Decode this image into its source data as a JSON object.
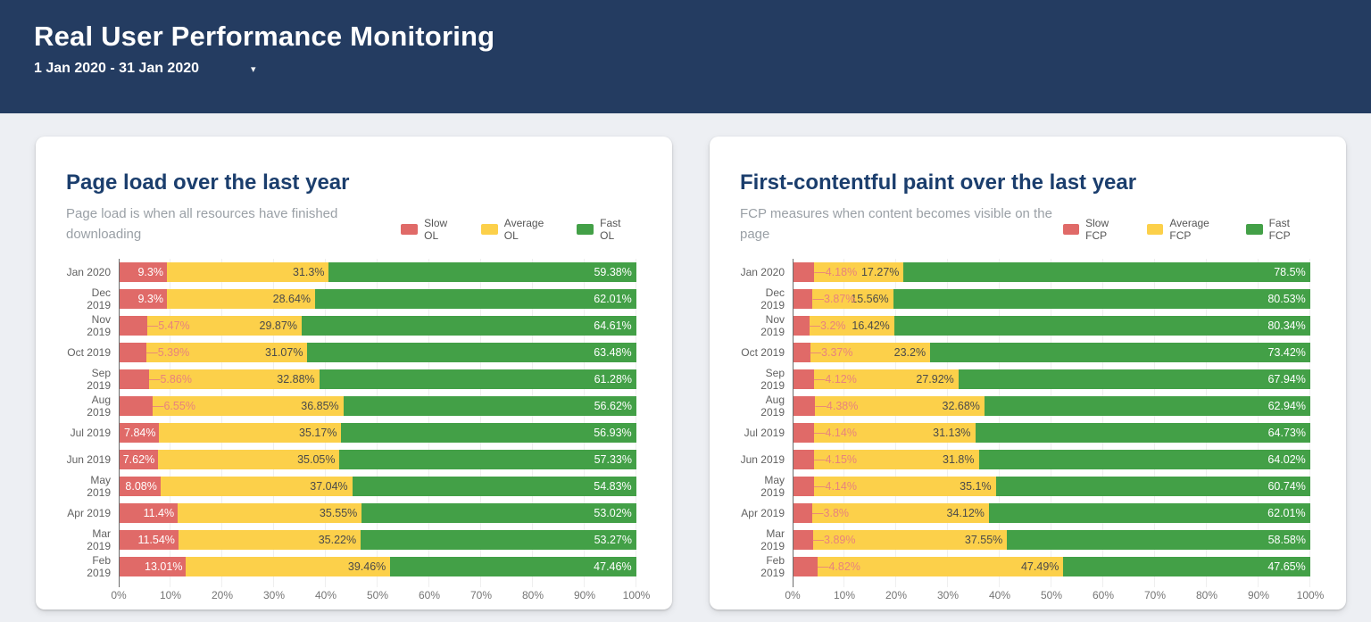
{
  "header": {
    "title": "Real User Performance Monitoring",
    "date_range": "1 Jan 2020 - 31 Jan 2020",
    "caret_icon": "▾"
  },
  "colors": {
    "header_bg": "#243c61",
    "page_bg": "#edeff3",
    "card_bg": "#ffffff",
    "card_title_text": "#1b3e6d",
    "subtitle_text": "#9aa0a6",
    "slow": "#e06a68",
    "average": "#fcd04a",
    "fast": "#43a047",
    "slow_outside_label": "#e8837d",
    "axis_text": "#757575"
  },
  "chart_data": [
    {
      "type": "bar",
      "orientation": "horizontal-stacked",
      "title": "Page load over the last year",
      "subtitle": "Page load is when all resources have finished downloading",
      "legend_position": "top-right",
      "grid": "vertical-faint",
      "xlim": [
        0,
        100
      ],
      "x_ticks": [
        "0%",
        "10%",
        "20%",
        "30%",
        "40%",
        "50%",
        "60%",
        "70%",
        "80%",
        "90%",
        "100%"
      ],
      "categories": [
        "Jan 2020",
        "Dec 2019",
        "Nov 2019",
        "Oct 2019",
        "Sep 2019",
        "Aug 2019",
        "Jul 2019",
        "Jun 2019",
        "May 2019",
        "Apr 2019",
        "Mar 2019",
        "Feb 2019"
      ],
      "series": [
        {
          "name": "Slow OL",
          "color": "#e06a68",
          "values": [
            9.3,
            9.3,
            5.47,
            5.39,
            5.86,
            6.55,
            7.84,
            7.62,
            8.08,
            11.4,
            11.54,
            13.01
          ],
          "labels": [
            "9.3%",
            "9.3%",
            "5.47%",
            "5.39%",
            "5.86%",
            "6.55%",
            "7.84%",
            "7.62%",
            "8.08%",
            "11.4%",
            "11.54%",
            "13.01%"
          ]
        },
        {
          "name": "Average OL",
          "color": "#fcd04a",
          "values": [
            31.3,
            28.64,
            29.87,
            31.07,
            32.88,
            36.85,
            35.17,
            35.05,
            37.04,
            35.55,
            35.22,
            39.46
          ],
          "labels": [
            "31.3%",
            "28.64%",
            "29.87%",
            "31.07%",
            "32.88%",
            "36.85%",
            "35.17%",
            "35.05%",
            "37.04%",
            "35.55%",
            "35.22%",
            "39.46%"
          ]
        },
        {
          "name": "Fast OL",
          "color": "#43a047",
          "values": [
            59.38,
            62.01,
            64.61,
            63.48,
            61.28,
            56.62,
            56.93,
            57.33,
            54.83,
            53.02,
            53.27,
            47.46
          ],
          "labels": [
            "59.38%",
            "62.01%",
            "64.61%",
            "63.48%",
            "61.28%",
            "56.62%",
            "56.93%",
            "57.33%",
            "54.83%",
            "53.02%",
            "53.27%",
            "47.46%"
          ]
        }
      ]
    },
    {
      "type": "bar",
      "orientation": "horizontal-stacked",
      "title": "First-contentful paint over the last year",
      "subtitle": "FCP measures when content becomes visible on the page",
      "legend_position": "top-right",
      "grid": "vertical-faint",
      "xlim": [
        0,
        100
      ],
      "x_ticks": [
        "0%",
        "10%",
        "20%",
        "30%",
        "40%",
        "50%",
        "60%",
        "70%",
        "80%",
        "90%",
        "100%"
      ],
      "categories": [
        "Jan 2020",
        "Dec 2019",
        "Nov 2019",
        "Oct 2019",
        "Sep 2019",
        "Aug 2019",
        "Jul 2019",
        "Jun 2019",
        "May 2019",
        "Apr 2019",
        "Mar 2019",
        "Feb 2019"
      ],
      "series": [
        {
          "name": "Slow FCP",
          "color": "#e06a68",
          "values": [
            4.18,
            3.87,
            3.2,
            3.37,
            4.12,
            4.38,
            4.14,
            4.15,
            4.14,
            3.8,
            3.89,
            4.82
          ],
          "labels": [
            "4.18%",
            "3.87%",
            "3.2%",
            "3.37%",
            "4.12%",
            "4.38%",
            "4.14%",
            "4.15%",
            "4.14%",
            "3.8%",
            "3.89%",
            "4.82%"
          ]
        },
        {
          "name": "Average FCP",
          "color": "#fcd04a",
          "values": [
            17.27,
            15.56,
            16.42,
            23.2,
            27.92,
            32.68,
            31.13,
            31.8,
            35.1,
            34.12,
            37.55,
            47.49
          ],
          "labels": [
            "17.27%",
            "15.56%",
            "16.42%",
            "23.2%",
            "27.92%",
            "32.68%",
            "31.13%",
            "31.8%",
            "35.1%",
            "34.12%",
            "37.55%",
            "47.49%"
          ]
        },
        {
          "name": "Fast FCP",
          "color": "#43a047",
          "values": [
            78.5,
            80.53,
            80.34,
            73.42,
            67.94,
            62.94,
            64.73,
            64.02,
            60.74,
            62.01,
            58.58,
            47.65
          ],
          "labels": [
            "78.5%",
            "80.53%",
            "80.34%",
            "73.42%",
            "67.94%",
            "62.94%",
            "64.73%",
            "64.02%",
            "60.74%",
            "62.01%",
            "58.58%",
            "47.65%"
          ]
        }
      ]
    }
  ]
}
